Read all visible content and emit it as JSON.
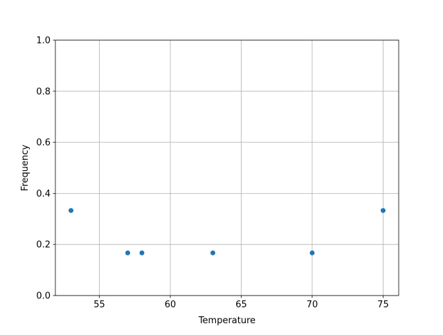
{
  "chart_data": {
    "type": "scatter",
    "title": "",
    "xlabel": "Temperature",
    "ylabel": "Frequency",
    "xlim": [
      51.9,
      76.1
    ],
    "ylim": [
      0.0,
      1.0
    ],
    "xticks": [
      55,
      60,
      65,
      70,
      75
    ],
    "xtick_labels": [
      "55",
      "60",
      "65",
      "70",
      "75"
    ],
    "yticks": [
      0.0,
      0.2,
      0.4,
      0.6,
      0.8,
      1.0
    ],
    "ytick_labels": [
      "0.0",
      "0.2",
      "0.4",
      "0.6",
      "0.8",
      "1.0"
    ],
    "grid": true,
    "color": "#1f77b4",
    "points": [
      {
        "x": 53,
        "y": 0.333
      },
      {
        "x": 57,
        "y": 0.167
      },
      {
        "x": 58,
        "y": 0.167
      },
      {
        "x": 63,
        "y": 0.167
      },
      {
        "x": 70,
        "y": 0.167
      },
      {
        "x": 75,
        "y": 0.333
      }
    ]
  }
}
